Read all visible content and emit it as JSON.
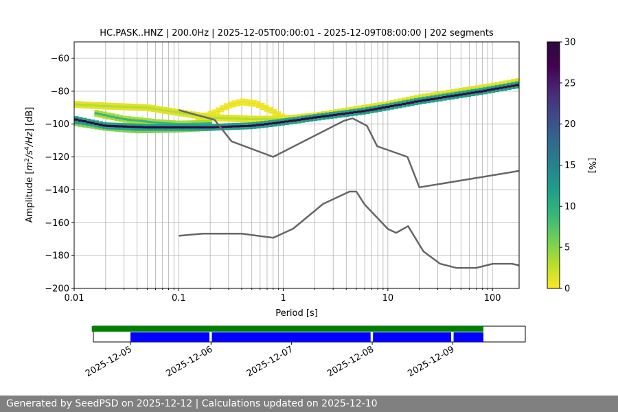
{
  "chart_data": {
    "type": "heatmap",
    "title": "HC.PASK..HNZ | 200.0Hz | 2025-12-05T00:00:01 - 2025-12-09T08:00:00 | 202 segments",
    "xlabel": "Period [s]",
    "ylabel_parts": [
      "Amplitude [",
      "m",
      "2",
      "/",
      "s",
      "4",
      "/",
      "Hz",
      "] [dB]"
    ],
    "xscale": "log",
    "xlim": [
      0.01,
      180
    ],
    "ylim": [
      -200,
      -50
    ],
    "grid": true,
    "x_ticks": [
      {
        "value": 0.01,
        "label": "0.01"
      },
      {
        "value": 0.1,
        "label": "0.1"
      },
      {
        "value": 1,
        "label": "1"
      },
      {
        "value": 10,
        "label": "10"
      },
      {
        "value": 100,
        "label": "100"
      }
    ],
    "y_ticks": [
      {
        "value": -60,
        "label": "−60"
      },
      {
        "value": -80,
        "label": "−80"
      },
      {
        "value": -100,
        "label": "−100"
      },
      {
        "value": -120,
        "label": "−120"
      },
      {
        "value": -140,
        "label": "−140"
      },
      {
        "value": -160,
        "label": "−160"
      },
      {
        "value": -180,
        "label": "−180"
      },
      {
        "value": -200,
        "label": "−200"
      }
    ],
    "noise_models": [
      {
        "name": "NHNM",
        "color": "#666666",
        "points": [
          [
            0.1,
            -91.5
          ],
          [
            0.22,
            -97.4
          ],
          [
            0.32,
            -110.5
          ],
          [
            0.8,
            -120
          ],
          [
            3.8,
            -98
          ],
          [
            4.6,
            -96.5
          ],
          [
            6.3,
            -101
          ],
          [
            7.9,
            -113.5
          ],
          [
            15.4,
            -120
          ],
          [
            20,
            -138.5
          ],
          [
            180,
            -128.5
          ]
        ]
      },
      {
        "name": "NLNM",
        "color": "#666666",
        "points": [
          [
            0.1,
            -168
          ],
          [
            0.17,
            -166.7
          ],
          [
            0.4,
            -166.7
          ],
          [
            0.8,
            -169.2
          ],
          [
            1.24,
            -163.7
          ],
          [
            2.4,
            -148.6
          ],
          [
            4.3,
            -141.1
          ],
          [
            5,
            -141.1
          ],
          [
            6,
            -149
          ],
          [
            10,
            -163.8
          ],
          [
            12,
            -166.2
          ],
          [
            15.6,
            -162.1
          ],
          [
            21.9,
            -177.5
          ],
          [
            31.6,
            -185
          ],
          [
            45,
            -187.5
          ],
          [
            70,
            -187.5
          ],
          [
            101,
            -185
          ],
          [
            154,
            -185
          ],
          [
            180,
            -186
          ]
        ]
      }
    ],
    "psd_density": {
      "z_unit": "%",
      "zlim": [
        0,
        30
      ],
      "bands": [
        {
          "name": "mode",
          "weight": 29,
          "points": [
            [
              0.01,
              -97
            ],
            [
              0.02,
              -101
            ],
            [
              0.05,
              -102
            ],
            [
              0.1,
              -102
            ],
            [
              0.2,
              -102
            ],
            [
              0.3,
              -101.5
            ],
            [
              0.5,
              -101
            ],
            [
              0.8,
              -99.5
            ],
            [
              1.2,
              -98
            ],
            [
              2,
              -96
            ],
            [
              4,
              -93.5
            ],
            [
              6,
              -92
            ],
            [
              10,
              -89.5
            ],
            [
              20,
              -86
            ],
            [
              40,
              -83
            ],
            [
              80,
              -80
            ],
            [
              180,
              -76
            ]
          ]
        },
        {
          "name": "upper-spread",
          "weight": 3,
          "points": [
            [
              0.01,
              -88
            ],
            [
              0.02,
              -89
            ],
            [
              0.05,
              -90
            ],
            [
              0.1,
              -93
            ],
            [
              0.2,
              -96
            ],
            [
              0.5,
              -97
            ],
            [
              1,
              -97
            ],
            [
              2,
              -95
            ],
            [
              4,
              -92
            ],
            [
              10,
              -88
            ],
            [
              20,
              -84
            ],
            [
              50,
              -80
            ],
            [
              100,
              -77
            ],
            [
              180,
              -74
            ]
          ]
        },
        {
          "name": "upper-bump",
          "weight": 1,
          "points": [
            [
              0.15,
              -97
            ],
            [
              0.22,
              -93
            ],
            [
              0.3,
              -88.5
            ],
            [
              0.4,
              -86.5
            ],
            [
              0.55,
              -87.5
            ],
            [
              0.75,
              -91.5
            ],
            [
              1,
              -96
            ],
            [
              1.3,
              -98
            ]
          ]
        },
        {
          "name": "lower-spread",
          "weight": 13,
          "points": [
            [
              0.01,
              -99
            ],
            [
              0.02,
              -102
            ],
            [
              0.04,
              -103.5
            ],
            [
              0.1,
              -103
            ],
            [
              0.2,
              -102
            ]
          ]
        },
        {
          "name": "mid-spread",
          "weight": 9,
          "points": [
            [
              0.015,
              -93
            ],
            [
              0.03,
              -97
            ],
            [
              0.06,
              -99
            ],
            [
              0.1,
              -100
            ],
            [
              0.2,
              -99.5
            ]
          ]
        }
      ]
    },
    "colorbar": {
      "label": "[%]",
      "ticks": [
        {
          "value": 0,
          "label": "0"
        },
        {
          "value": 5,
          "label": "5"
        },
        {
          "value": 10,
          "label": "10"
        },
        {
          "value": 15,
          "label": "15"
        },
        {
          "value": 20,
          "label": "20"
        },
        {
          "value": 25,
          "label": "25"
        },
        {
          "value": 30,
          "label": "30"
        }
      ]
    },
    "availability": {
      "time_range_days": [
        -0.46,
        4.9
      ],
      "data_span_days": [
        -0.48,
        4.38
      ],
      "segments_days": [
        [
          0,
          0.98
        ],
        [
          1.01,
          2.98
        ],
        [
          3.01,
          3.98
        ],
        [
          4.01,
          4.38
        ]
      ],
      "data_color": "#008000",
      "segment_color": "#0000ff",
      "ticks": [
        {
          "value": 0,
          "label": "2025-12-05"
        },
        {
          "value": 1,
          "label": "2025-12-06"
        },
        {
          "value": 2,
          "label": "2025-12-07"
        },
        {
          "value": 3,
          "label": "2025-12-08"
        },
        {
          "value": 4,
          "label": "2025-12-09"
        }
      ]
    }
  },
  "footer": {
    "text": "Generated by SeedPSD on 2025-12-12 | Calculations updated on 2025-12-10"
  }
}
